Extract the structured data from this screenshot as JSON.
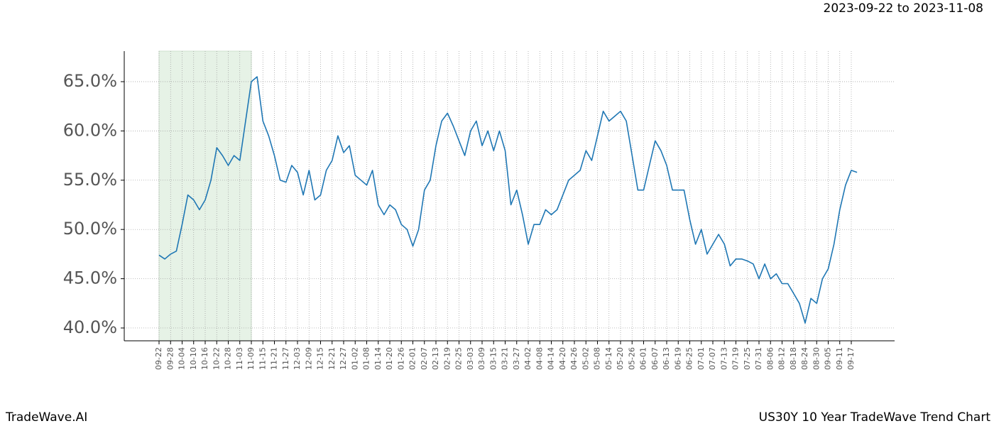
{
  "chart_data": {
    "type": "line",
    "subtitle": "2023-09-22 to 2023-11-08",
    "footer_left": "TradeWave.AI",
    "footer_right": "US30Y 10 Year TradeWave Trend Chart",
    "categories": [
      "09-22",
      null,
      "09-28",
      null,
      "10-04",
      null,
      "10-10",
      null,
      "10-16",
      null,
      "10-22",
      null,
      "10-28",
      null,
      "11-03",
      null,
      "11-09",
      null,
      "11-15",
      null,
      "11-21",
      null,
      "11-27",
      null,
      "12-03",
      null,
      "12-09",
      null,
      "12-15",
      null,
      "12-21",
      null,
      "12-27",
      null,
      "01-02",
      null,
      "01-08",
      null,
      "01-14",
      null,
      "01-20",
      null,
      "01-26",
      null,
      "02-01",
      null,
      "02-07",
      null,
      "02-13",
      null,
      "02-19",
      null,
      "02-25",
      null,
      "03-03",
      null,
      "03-09",
      null,
      "03-15",
      null,
      "03-21",
      null,
      "03-27",
      null,
      "04-02",
      null,
      "04-08",
      null,
      "04-14",
      null,
      "04-20",
      null,
      "04-26",
      null,
      "05-02",
      null,
      "05-08",
      null,
      "05-14",
      null,
      "05-20",
      null,
      "05-26",
      null,
      "06-01",
      null,
      "06-07",
      null,
      "06-13",
      null,
      "06-19",
      null,
      "06-25",
      null,
      "07-01",
      null,
      "07-07",
      null,
      "07-13",
      null,
      "07-19",
      null,
      "07-25",
      null,
      "07-31",
      null,
      "08-06",
      null,
      "08-12",
      null,
      "08-18",
      null,
      "08-24",
      null,
      "08-30",
      null,
      "09-05",
      null,
      "09-11",
      null,
      "09-17",
      null
    ],
    "series": [
      {
        "color": "#1f77b4",
        "values": [
          47.4,
          47.0,
          47.5,
          47.8,
          50.5,
          53.5,
          53.0,
          52.0,
          53.0,
          55.0,
          58.3,
          57.5,
          56.5,
          57.5,
          57.0,
          61.0,
          65.0,
          65.5,
          61.0,
          59.5,
          57.5,
          55.0,
          54.8,
          56.5,
          55.8,
          53.5,
          56.0,
          53.0,
          53.5,
          56.0,
          57.0,
          59.5,
          57.8,
          58.5,
          55.5,
          55.0,
          54.5,
          56.0,
          52.5,
          51.5,
          52.5,
          52.0,
          50.5,
          50.0,
          48.3,
          50.0,
          54.0,
          55.0,
          58.5,
          61.0,
          61.8,
          60.5,
          59.0,
          57.5,
          60.0,
          61.0,
          58.5,
          60.0,
          58.0,
          60.0,
          58.0,
          52.5,
          54.0,
          51.5,
          48.5,
          50.5,
          50.5,
          52.0,
          51.5,
          52.0,
          53.5,
          55.0,
          55.5,
          56.0,
          58.0,
          57.0,
          59.5,
          62.0,
          61.0,
          61.5,
          62.0,
          61.0,
          57.5,
          54.0,
          54.0,
          56.5,
          59.0,
          58.0,
          56.5,
          54.0,
          54.0,
          54.0,
          51.0,
          48.5,
          50.0,
          47.5,
          48.5,
          49.5,
          48.5,
          46.3,
          47.0,
          47.0,
          46.8,
          46.5,
          45.0,
          46.5,
          45.0,
          45.5,
          44.5,
          44.5,
          43.5,
          42.5,
          40.5,
          43.0,
          42.5,
          45.0,
          46.0,
          48.5,
          52.0,
          54.5,
          56.0,
          55.8
        ]
      }
    ],
    "highlight": {
      "start": 0,
      "end": 16,
      "color": "#e6f2e6"
    },
    "ylim": [
      38.7,
      68.1
    ],
    "yticks": [
      {
        "value": 40,
        "label": "40.0%"
      },
      {
        "value": 45,
        "label": "45.0%"
      },
      {
        "value": 50,
        "label": "50.0%"
      },
      {
        "value": 55,
        "label": "55.0%"
      },
      {
        "value": 60,
        "label": "60.0%"
      },
      {
        "value": 65,
        "label": "65.0%"
      }
    ],
    "grid": true
  }
}
